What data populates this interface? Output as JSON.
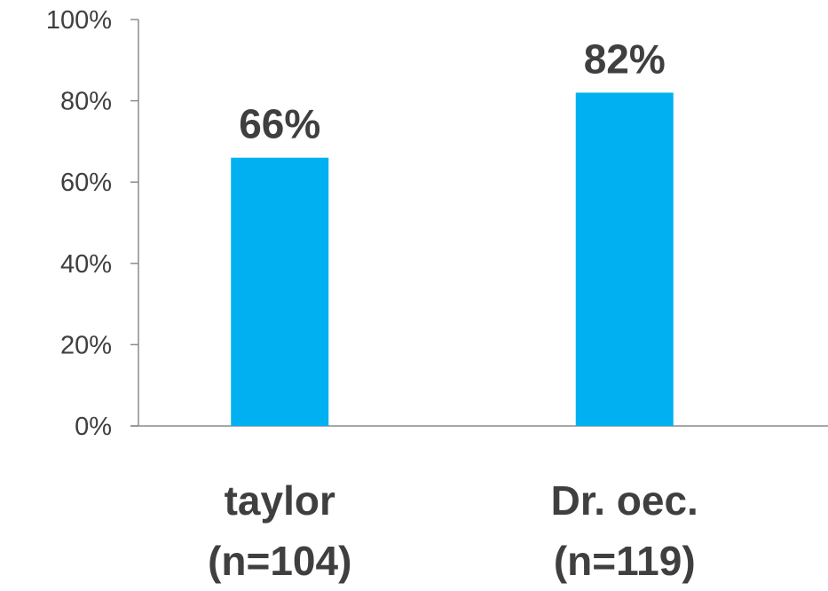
{
  "chart_data": {
    "type": "bar",
    "title": "",
    "xlabel": "",
    "ylabel": "",
    "ylim": [
      0,
      100
    ],
    "yticks": [
      0,
      20,
      40,
      60,
      80,
      100
    ],
    "ytick_labels": [
      "0%",
      "20%",
      "40%",
      "60%",
      "80%",
      "100%"
    ],
    "grid": false,
    "legend": "none",
    "bar_color": "#00b0f0",
    "text_color": "#3f3f3f",
    "axis_color": "#8c8c8c",
    "categories": [
      {
        "name": "taylor",
        "n_label": "(n=104)"
      },
      {
        "name": "Dr. oec.",
        "n_label": "(n=119)"
      }
    ],
    "values": [
      66,
      82
    ],
    "data_labels": [
      "66%",
      "82%"
    ]
  }
}
